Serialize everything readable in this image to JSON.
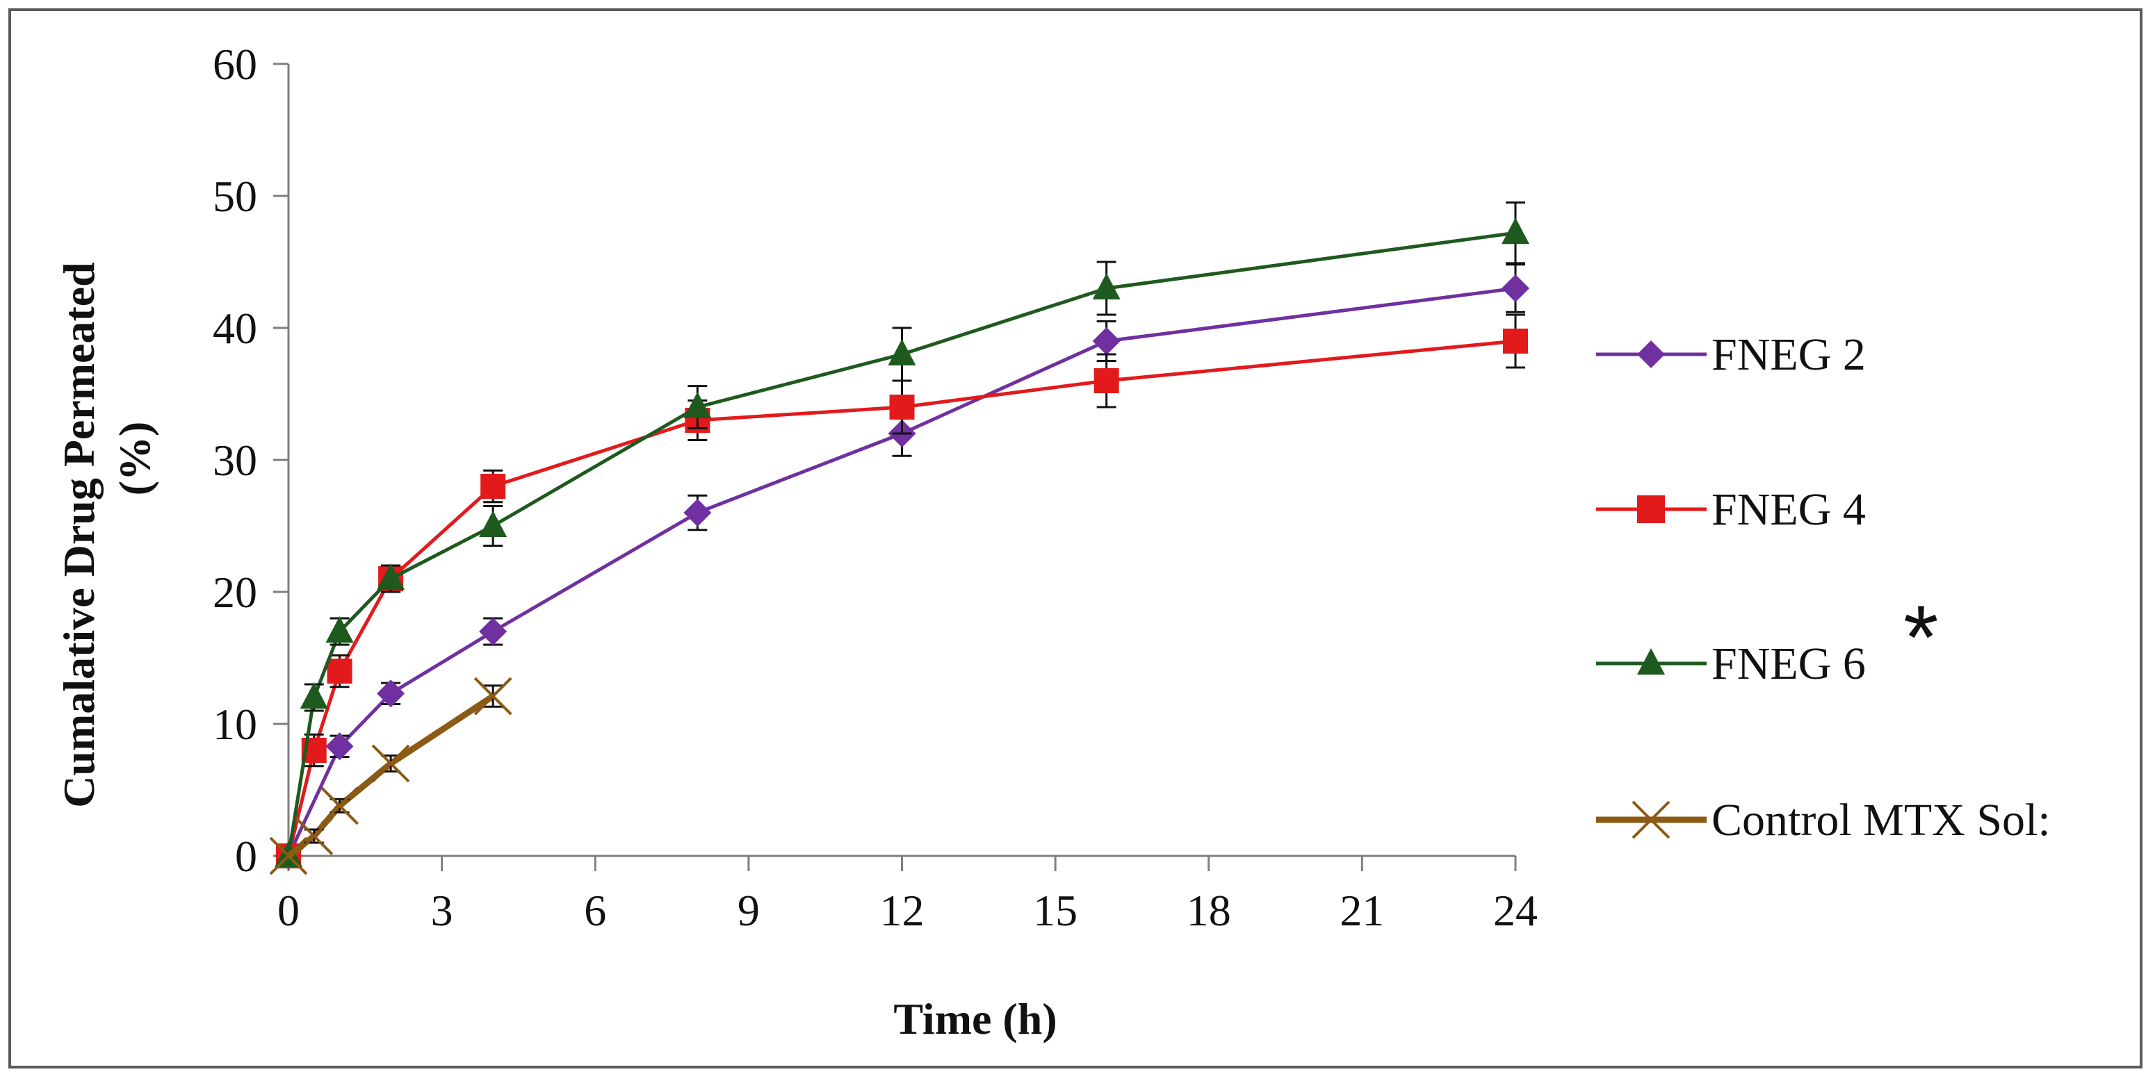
{
  "chart_data": {
    "type": "line",
    "title": "",
    "xlabel": "Time (h)",
    "ylabel_line1": "Cumalative  Drug  Permeated",
    "ylabel_line2": "(%)",
    "xlim": [
      0,
      24
    ],
    "ylim": [
      0,
      60
    ],
    "xticks": [
      0,
      3,
      6,
      9,
      12,
      15,
      18,
      21,
      24
    ],
    "yticks": [
      0,
      10,
      20,
      30,
      40,
      50,
      60
    ],
    "grid": false,
    "legend_position": "right",
    "annotation": "*",
    "series": [
      {
        "name": "FNEG 2",
        "color": "#7030a0",
        "marker": "diamond",
        "x": [
          0,
          1,
          2,
          4,
          8,
          12,
          16,
          24
        ],
        "y": [
          0,
          8.3,
          12.3,
          17,
          26,
          32,
          39,
          43
        ],
        "err": [
          0,
          0.8,
          0.8,
          1,
          1.3,
          1.7,
          1.5,
          1.8
        ]
      },
      {
        "name": "FNEG 4",
        "color": "#e31a1c",
        "marker": "square",
        "x": [
          0,
          0.5,
          1,
          2,
          4,
          8,
          12,
          16,
          24
        ],
        "y": [
          0,
          8,
          14,
          21,
          28,
          33,
          34,
          36,
          39
        ],
        "err": [
          0,
          1.2,
          1.2,
          1,
          1.2,
          1.5,
          2,
          2,
          2
        ]
      },
      {
        "name": "FNEG 6",
        "color": "#1e5a1e",
        "marker": "triangle",
        "x": [
          0,
          0.5,
          1,
          2,
          4,
          8,
          12,
          16,
          24
        ],
        "y": [
          0,
          12,
          17,
          21,
          25,
          34,
          38,
          43,
          47.2
        ],
        "err": [
          0,
          1,
          1,
          1,
          1.5,
          1.6,
          2,
          2,
          2.3
        ]
      },
      {
        "name": "Control MTX Sol:",
        "color": "#8b5a14",
        "marker": "x",
        "x": [
          0,
          0.5,
          1,
          2,
          4
        ],
        "y": [
          0,
          1.5,
          3.8,
          7,
          12.1
        ],
        "err": [
          0,
          0.5,
          0.5,
          0.6,
          0.8
        ]
      }
    ]
  }
}
